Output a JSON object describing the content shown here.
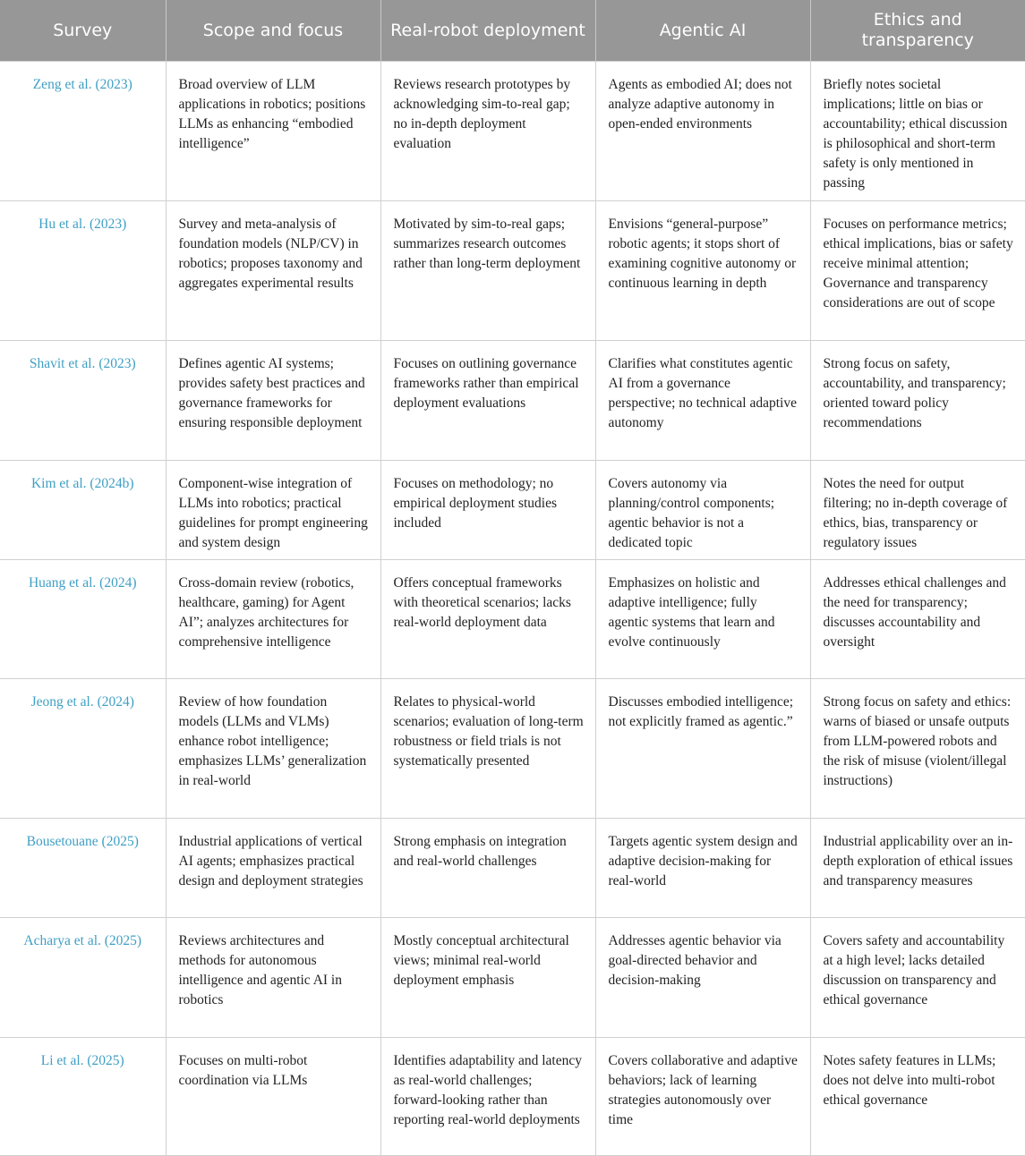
{
  "headers": [
    "Survey",
    "Scope and focus",
    "Real-robot deployment",
    "Agentic AI",
    "Ethics and transparency"
  ],
  "rows": [
    {
      "survey": "Zeng et al. (2023)",
      "scope": "Broad overview of LLM applications in robotics; positions LLMs as enhancing “embodied intelligence”",
      "deploy": "Reviews research prototypes by acknowledging sim-to-real gap; no in-depth deployment evaluation",
      "agentic": "Agents as embodied AI; does not analyze adaptive autonomy in open-ended environments",
      "ethics": "Briefly notes societal implications; little on bias or accountability; ethical discussion is philosophical and short-term safety is only mentioned in passing"
    },
    {
      "survey": "Hu et al. (2023)",
      "scope": "Survey and meta-analysis of foundation models (NLP/CV) in robotics; proposes taxonomy and aggregates experimental results",
      "deploy": "Motivated by sim-to-real gaps; summarizes research outcomes rather than long-term deployment",
      "agentic": "Envisions “general-purpose” robotic agents; it stops short of examining cognitive autonomy or continuous learning in depth",
      "ethics": "Focuses on performance metrics; ethical implications, bias or safety receive minimal attention; Governance and transparency considerations are out of scope"
    },
    {
      "survey": "Shavit et al. (2023)",
      "scope": "Defines agentic AI systems; provides safety best practices and governance frameworks for ensuring responsible deployment",
      "deploy": "Focuses on outlining governance frameworks rather than empirical deployment evaluations",
      "agentic": "Clarifies what constitutes agentic AI from a governance perspective; no technical adaptive autonomy",
      "ethics": "Strong focus on safety, accountability, and transparency; oriented toward policy recommendations"
    },
    {
      "survey": "Kim et al. (2024b)",
      "scope": "Component-wise integration of LLMs into robotics; practical guidelines for prompt engineering and system design",
      "deploy": "Focuses on methodology; no empirical deployment studies included",
      "agentic": "Covers autonomy via planning/control components; agentic behavior is not a dedicated topic",
      "ethics": "Notes the need for output filtering; no in-depth coverage of ethics, bias, transparency or regulatory issues"
    },
    {
      "survey": "Huang et al. (2024)",
      "scope": "Cross-domain review (robotics, healthcare, gaming) for Agent AI”; analyzes architectures for comprehensive intelligence",
      "deploy": "Offers conceptual frameworks with theoretical scenarios; lacks real-world deployment data",
      "agentic": "Emphasizes on holistic and adaptive intelligence; fully agentic systems that learn and evolve continuously",
      "ethics": "Addresses ethical challenges and the need for transparency; discusses accountability and oversight"
    },
    {
      "survey": "Jeong et al. (2024)",
      "scope": "Review of how foundation models (LLMs and VLMs) enhance robot intelligence; emphasizes LLMs’ generalization in real-world",
      "deploy": "Relates to physical-world scenarios; evaluation of long-term robustness or field trials is not systematically presented",
      "agentic": "Discusses embodied intelligence; not explicitly framed as agentic.”",
      "ethics": "Strong focus on safety and ethics: warns of biased or unsafe outputs from LLM-powered robots and the risk of misuse (violent/illegal instructions)"
    },
    {
      "survey": "Bousetouane (2025)",
      "scope": "Industrial applications of vertical AI agents; emphasizes practical design and deployment strategies",
      "deploy": "Strong emphasis on integration and real-world challenges",
      "agentic": "Targets agentic system design and adaptive decision-making for real-world",
      "ethics": "Industrial applicability over an in-depth exploration of ethical issues and transparency measures"
    },
    {
      "survey": "Acharya et al. (2025)",
      "scope": "Reviews architectures and methods for autonomous intelligence and agentic AI in robotics",
      "deploy": "Mostly conceptual architectural views; minimal real-world deployment emphasis",
      "agentic": "Addresses agentic behavior via goal-directed behavior and decision-making",
      "ethics": "Covers safety and accountability at a high level; lacks detailed discussion on transparency and ethical governance"
    },
    {
      "survey": "Li et al. (2025)",
      "scope": "Focuses on multi-robot coordination via LLMs",
      "deploy": "Identifies adaptability and latency as real-world challenges; forward-looking rather than reporting real-world deployments",
      "agentic": "Covers collaborative and adaptive behaviors; lack of learning strategies autonomously over time",
      "ethics": "Notes safety features in LLMs; does not delve into multi-robot ethical governance"
    }
  ]
}
